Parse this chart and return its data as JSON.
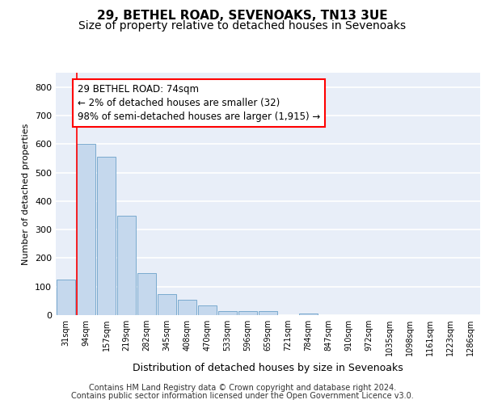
{
  "title1": "29, BETHEL ROAD, SEVENOAKS, TN13 3UE",
  "title2": "Size of property relative to detached houses in Sevenoaks",
  "xlabel": "Distribution of detached houses by size in Sevenoaks",
  "ylabel": "Number of detached properties",
  "categories": [
    "31sqm",
    "94sqm",
    "157sqm",
    "219sqm",
    "282sqm",
    "345sqm",
    "408sqm",
    "470sqm",
    "533sqm",
    "596sqm",
    "659sqm",
    "721sqm",
    "784sqm",
    "847sqm",
    "910sqm",
    "972sqm",
    "1035sqm",
    "1098sqm",
    "1161sqm",
    "1223sqm",
    "1286sqm"
  ],
  "values": [
    125,
    600,
    555,
    348,
    148,
    75,
    55,
    35,
    13,
    13,
    13,
    0,
    7,
    0,
    0,
    0,
    0,
    0,
    0,
    0,
    0
  ],
  "bar_color": "#c5d8ed",
  "bar_edge_color": "#7aaace",
  "annotation_text": "29 BETHEL ROAD: 74sqm\n← 2% of detached houses are smaller (32)\n98% of semi-detached houses are larger (1,915) →",
  "annotation_box_color": "white",
  "annotation_box_edge_color": "red",
  "ylim": [
    0,
    850
  ],
  "yticks": [
    0,
    100,
    200,
    300,
    400,
    500,
    600,
    700,
    800
  ],
  "background_color": "#e8eef8",
  "grid_color": "white",
  "footer_line1": "Contains HM Land Registry data © Crown copyright and database right 2024.",
  "footer_line2": "Contains public sector information licensed under the Open Government Licence v3.0.",
  "title1_fontsize": 11,
  "title2_fontsize": 10,
  "annotation_fontsize": 8.5,
  "footer_fontsize": 7,
  "ylabel_fontsize": 8,
  "xlabel_fontsize": 9
}
